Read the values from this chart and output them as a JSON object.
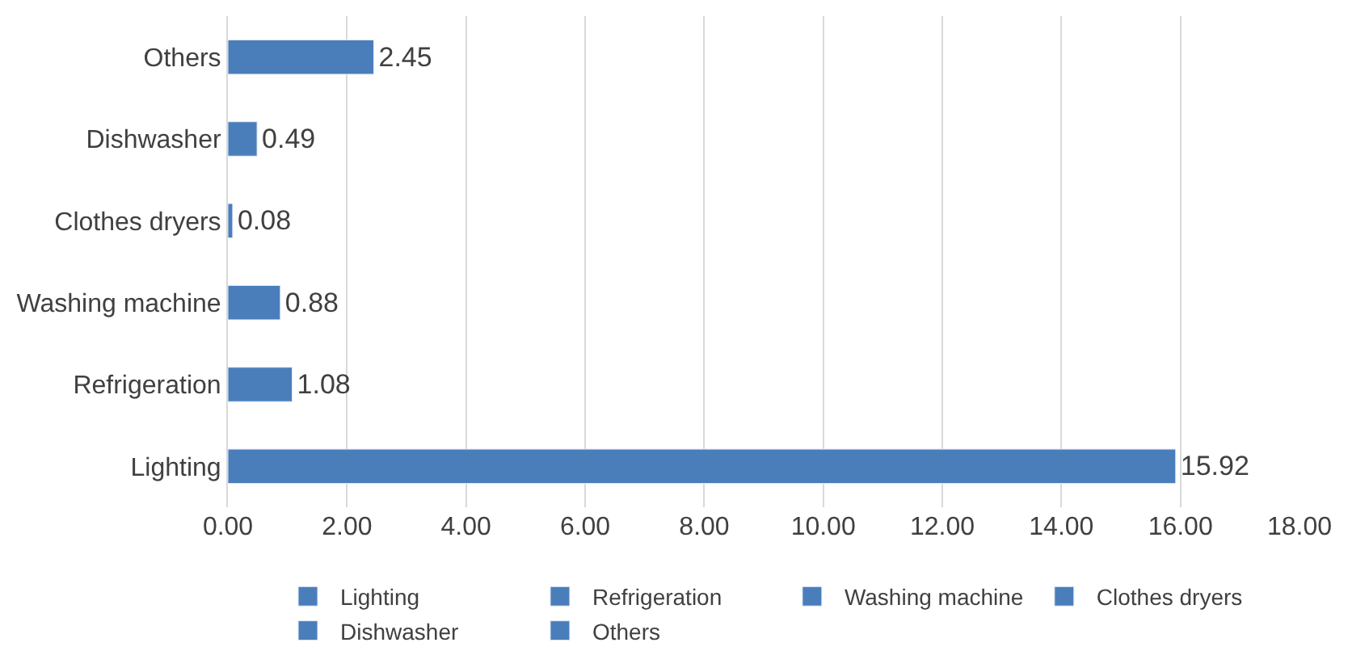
{
  "chart_data": {
    "type": "bar",
    "orientation": "horizontal",
    "categories": [
      "Others",
      "Dishwasher",
      "Clothes dryers",
      "Washing machine",
      "Refrigeration",
      "Lighting"
    ],
    "series": [
      {
        "name": "Lighting",
        "color": "#4a7ebb",
        "values": [
          null,
          null,
          null,
          null,
          null,
          15.92
        ]
      },
      {
        "name": "Refrigeration",
        "color": "#4a7ebb",
        "values": [
          null,
          null,
          null,
          null,
          1.08,
          null
        ]
      },
      {
        "name": "Washing machine",
        "color": "#4a7ebb",
        "values": [
          null,
          null,
          null,
          0.88,
          null,
          null
        ]
      },
      {
        "name": "Clothes dryers",
        "color": "#4a7ebb",
        "values": [
          null,
          null,
          0.08,
          null,
          null,
          null
        ]
      },
      {
        "name": "Dishwasher",
        "color": "#4a7ebb",
        "values": [
          null,
          0.49,
          null,
          null,
          null,
          null
        ]
      },
      {
        "name": "Others",
        "color": "#4a7ebb",
        "values": [
          2.45,
          null,
          null,
          null,
          null,
          null
        ]
      }
    ],
    "xlim": [
      0,
      18
    ],
    "xticks": [
      {
        "value": 0,
        "label": "0.00"
      },
      {
        "value": 2,
        "label": "2.00"
      },
      {
        "value": 4,
        "label": "4.00"
      },
      {
        "value": 6,
        "label": "6.00"
      },
      {
        "value": 8,
        "label": "8.00"
      },
      {
        "value": 10,
        "label": "10.00"
      },
      {
        "value": 12,
        "label": "12.00"
      },
      {
        "value": 14,
        "label": "14.00"
      },
      {
        "value": 16,
        "label": "16.00"
      },
      {
        "value": 18,
        "label": "18.00"
      }
    ],
    "grid": "x",
    "data_labels": true,
    "legend": "bottom"
  }
}
